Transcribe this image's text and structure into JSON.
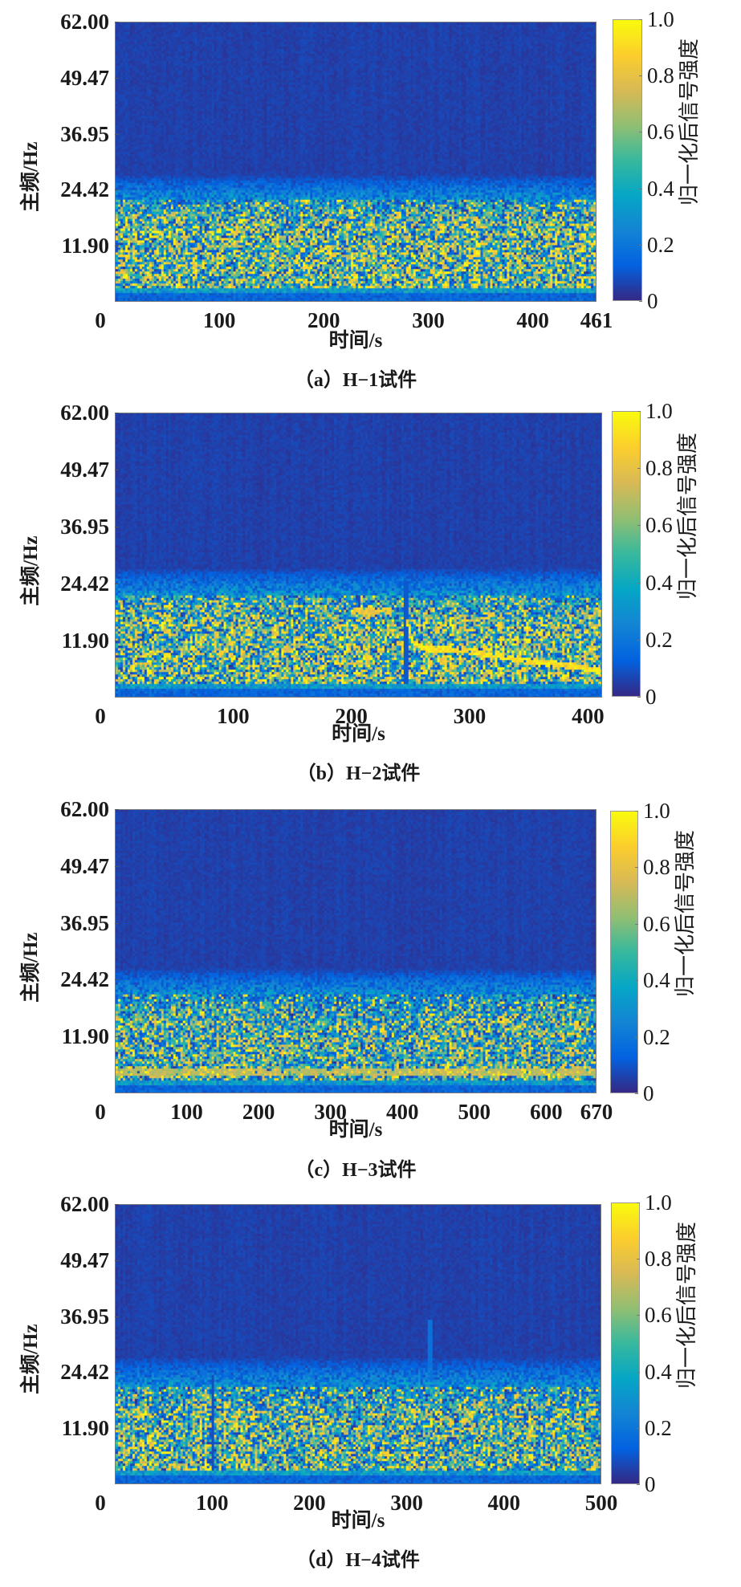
{
  "figure": {
    "colormap": "parula",
    "colormap_stops": [
      "#352a87",
      "#0363e1",
      "#1485d4",
      "#06a7c6",
      "#38b99e",
      "#92bf73",
      "#d9ba56",
      "#fcce2e",
      "#f9fb0e"
    ]
  },
  "chart_data": [
    {
      "type": "heatmap",
      "title": "",
      "caption": "（a）H−1试件",
      "xlabel": "时间/s",
      "ylabel": "主频/Hz",
      "colorbar_label": "归一化后信号强度",
      "xlim": [
        0,
        461
      ],
      "ylim": [
        -0.63,
        62.0
      ],
      "xticks": [
        0,
        100,
        200,
        300,
        400,
        461
      ],
      "xtick_labels": [
        "0",
        "100",
        "200",
        "300",
        "400",
        "461"
      ],
      "yticks": [
        62.0,
        49.47,
        36.95,
        24.42,
        11.9
      ],
      "ytick_labels": [
        "62.00",
        "49.47",
        "36.95",
        "24.42",
        "11.90"
      ],
      "clim": [
        0,
        1
      ],
      "cticks": [
        1.0,
        0.8,
        0.6,
        0.4,
        0.2,
        0
      ],
      "ctick_labels": [
        "1.0",
        "0.8",
        "0.6",
        "0.4",
        "0.2",
        "0"
      ],
      "grid": false,
      "intensity_profile": {
        "description": "Low background above ~27 Hz; noisy broadband energy concentrated between ~2 and ~22 Hz; dark band below ~2 Hz",
        "background_level": 0.02,
        "band_low_hz": 2.0,
        "band_high_hz": 22.0,
        "fade_top_hz": 28.0,
        "band_mean_level": 0.55,
        "features": []
      },
      "seed": 11
    },
    {
      "type": "heatmap",
      "title": "",
      "caption": "（b）H−2试件",
      "xlabel": "时间/s",
      "ylabel": "主频/Hz",
      "colorbar_label": "归一化后信号强度",
      "xlim": [
        0,
        412
      ],
      "ylim": [
        -0.63,
        62.0
      ],
      "xticks": [
        0,
        100,
        200,
        300,
        400
      ],
      "xtick_labels": [
        "0",
        "100",
        "200",
        "300",
        "400"
      ],
      "yticks": [
        62.0,
        49.47,
        36.95,
        24.42,
        11.9
      ],
      "ytick_labels": [
        "62.00",
        "49.47",
        "36.95",
        "24.42",
        "11.90"
      ],
      "clim": [
        0,
        1
      ],
      "cticks": [
        1.0,
        0.8,
        0.6,
        0.4,
        0.2,
        0
      ],
      "ctick_labels": [
        "1.0",
        "0.8",
        "0.6",
        "0.4",
        "0.2",
        "0"
      ],
      "grid": false,
      "intensity_profile": {
        "description": "Broadband energy 2–22 Hz; dark vertical discontinuity near 247 s followed by a bright ridge descending from ~11 Hz to ~5 Hz",
        "background_level": 0.02,
        "band_low_hz": 2.0,
        "band_high_hz": 22.0,
        "fade_top_hz": 28.0,
        "band_mean_level": 0.55,
        "features": [
          {
            "kind": "vertical_line",
            "t": 247,
            "f_min": 2,
            "f_max": 25,
            "level": 0.1
          },
          {
            "kind": "ridge",
            "points": [
              [
                247,
                16.0
              ],
              [
                252,
                11.5
              ],
              [
                262,
                10.0
              ],
              [
                290,
                10.0
              ],
              [
                320,
                8.5
              ],
              [
                360,
                7.0
              ],
              [
                390,
                6.0
              ],
              [
                412,
                5.0
              ]
            ],
            "level": 1.0
          },
          {
            "kind": "ridge",
            "points": [
              [
                200,
                18.5
              ],
              [
                235,
                18.5
              ]
            ],
            "level": 0.9
          }
        ]
      },
      "seed": 23
    },
    {
      "type": "heatmap",
      "title": "",
      "caption": "（c）H−3试件",
      "xlabel": "时间/s",
      "ylabel": "主频/Hz",
      "colorbar_label": "归一化后信号强度",
      "xlim": [
        0,
        670
      ],
      "ylim": [
        -0.63,
        62.0
      ],
      "xticks": [
        0,
        100,
        200,
        300,
        400,
        500,
        600,
        670
      ],
      "xtick_labels": [
        "0",
        "100",
        "200",
        "300",
        "400",
        "500",
        "600",
        "670"
      ],
      "yticks": [
        62.0,
        49.47,
        36.95,
        24.42,
        11.9
      ],
      "ytick_labels": [
        "62.00",
        "49.47",
        "36.95",
        "24.42",
        "11.90"
      ],
      "clim": [
        0,
        1
      ],
      "cticks": [
        1.0,
        0.8,
        0.6,
        0.4,
        0.2,
        0
      ],
      "ctick_labels": [
        "1.0",
        "0.8",
        "0.6",
        "0.4",
        "0.2",
        "0"
      ],
      "grid": false,
      "intensity_profile": {
        "description": "Broadband energy 2–21 Hz, slightly weaker overall; brighter near ~3–4 Hz",
        "background_level": 0.02,
        "band_low_hz": 2.0,
        "band_high_hz": 21.0,
        "fade_top_hz": 27.0,
        "band_mean_level": 0.48,
        "features": [
          {
            "kind": "ridge",
            "points": [
              [
                0,
                3.8
              ],
              [
                670,
                3.8
              ]
            ],
            "level": 0.75
          }
        ]
      },
      "seed": 37
    },
    {
      "type": "heatmap",
      "title": "",
      "caption": "（d）H−4试件",
      "xlabel": "时间/s",
      "ylabel": "主频/Hz",
      "colorbar_label": "归一化后信号强度",
      "xlim": [
        0,
        500
      ],
      "ylim": [
        -0.63,
        62.0
      ],
      "xticks": [
        0,
        100,
        200,
        300,
        400,
        500
      ],
      "xtick_labels": [
        "0",
        "100",
        "200",
        "300",
        "400",
        "500"
      ],
      "yticks": [
        62.0,
        49.47,
        36.95,
        24.42,
        11.9
      ],
      "ytick_labels": [
        "62.00",
        "49.47",
        "36.95",
        "24.42",
        "11.90"
      ],
      "clim": [
        0,
        1
      ],
      "cticks": [
        1.0,
        0.8,
        0.6,
        0.4,
        0.2,
        0
      ],
      "ctick_labels": [
        "1.0",
        "0.8",
        "0.6",
        "0.4",
        "0.2",
        "0"
      ],
      "grid": false,
      "intensity_profile": {
        "description": "Broadband energy 2–21 Hz; dark vertical line near 100 s; faint vertical streak near 325 s",
        "background_level": 0.02,
        "band_low_hz": 2.0,
        "band_high_hz": 21.0,
        "fade_top_hz": 28.0,
        "band_mean_level": 0.52,
        "features": [
          {
            "kind": "vertical_line",
            "t": 100,
            "f_min": 2,
            "f_max": 24,
            "level": 0.08
          },
          {
            "kind": "vertical_streak",
            "t": 325,
            "f_min": 20,
            "f_max": 36,
            "level": 0.18
          }
        ]
      },
      "seed": 53
    }
  ]
}
